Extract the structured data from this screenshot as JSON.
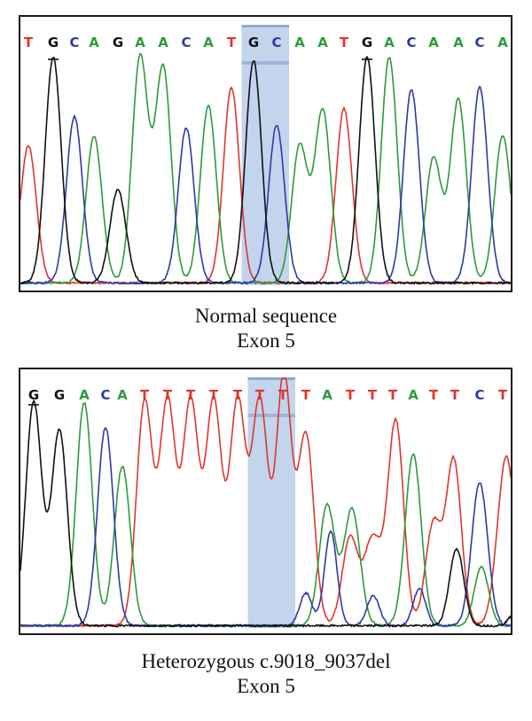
{
  "colors": {
    "A": "#2e9a3c",
    "C": "#2d3aa8",
    "G": "#111111",
    "T": "#e0362c",
    "highlight": "#b9cdea",
    "highlight_band": "#8fa8cf"
  },
  "panels": [
    {
      "id": "normal",
      "bases": [
        "T",
        "G",
        "C",
        "A",
        "G",
        "A",
        "A",
        "C",
        "A",
        "T",
        "G",
        "C",
        "A",
        "A",
        "T",
        "G",
        "A",
        "C",
        "A",
        "A",
        "C",
        "A"
      ],
      "highlight_range": [
        10,
        11
      ],
      "caption": {
        "line1": "Normal sequence",
        "line2": "Exon 5"
      }
    },
    {
      "id": "mutant",
      "bases": [
        "G",
        "G",
        "A",
        "C",
        "A",
        "T",
        "T",
        "T",
        "T",
        "T",
        "T",
        "T",
        "T",
        "A",
        "T",
        "T",
        "T",
        "A",
        "T",
        "T",
        "C",
        "T"
      ],
      "highlight_range": [
        10,
        11
      ],
      "caption": {
        "line1": "Heterozygous c.9018_9037del",
        "line2": "Exon 5"
      }
    }
  ]
}
